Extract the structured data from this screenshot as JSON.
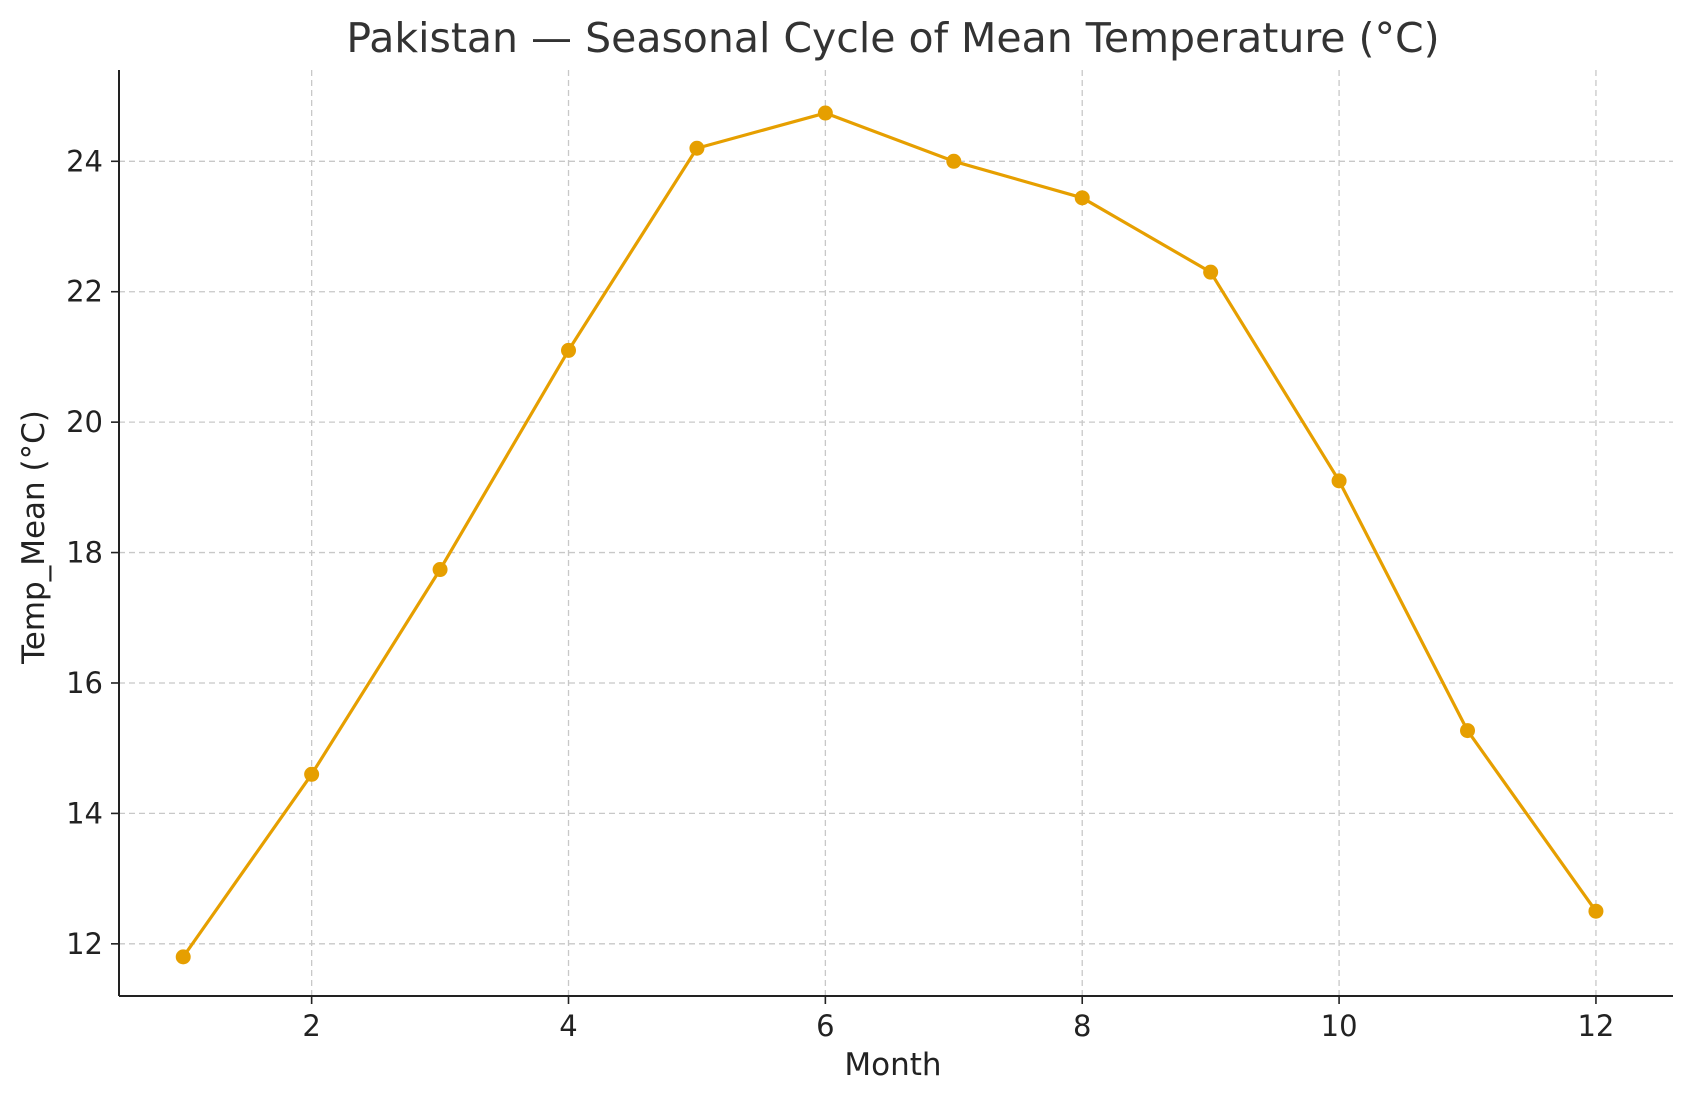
{
  "chart_data": {
    "type": "line",
    "title": "Pakistan — Seasonal Cycle of Mean Temperature (°C)",
    "xlabel": "Month",
    "ylabel": "Temp_Mean (°C)",
    "x": [
      1,
      2,
      3,
      4,
      5,
      6,
      7,
      8,
      9,
      10,
      11,
      12
    ],
    "series": [
      {
        "values": [
          11.8,
          14.6,
          17.74,
          21.1,
          24.2,
          24.74,
          24.0,
          23.44,
          22.3,
          19.1,
          15.27,
          12.5
        ],
        "color": "#e69f00"
      }
    ],
    "xlim": [
      0.5,
      12.6
    ],
    "ylim": [
      11.2,
      25.4
    ],
    "xticks": [
      2,
      4,
      6,
      8,
      10,
      12
    ],
    "yticks": [
      12,
      14,
      16,
      18,
      20,
      22,
      24
    ],
    "grid": true,
    "marker": "circle"
  }
}
